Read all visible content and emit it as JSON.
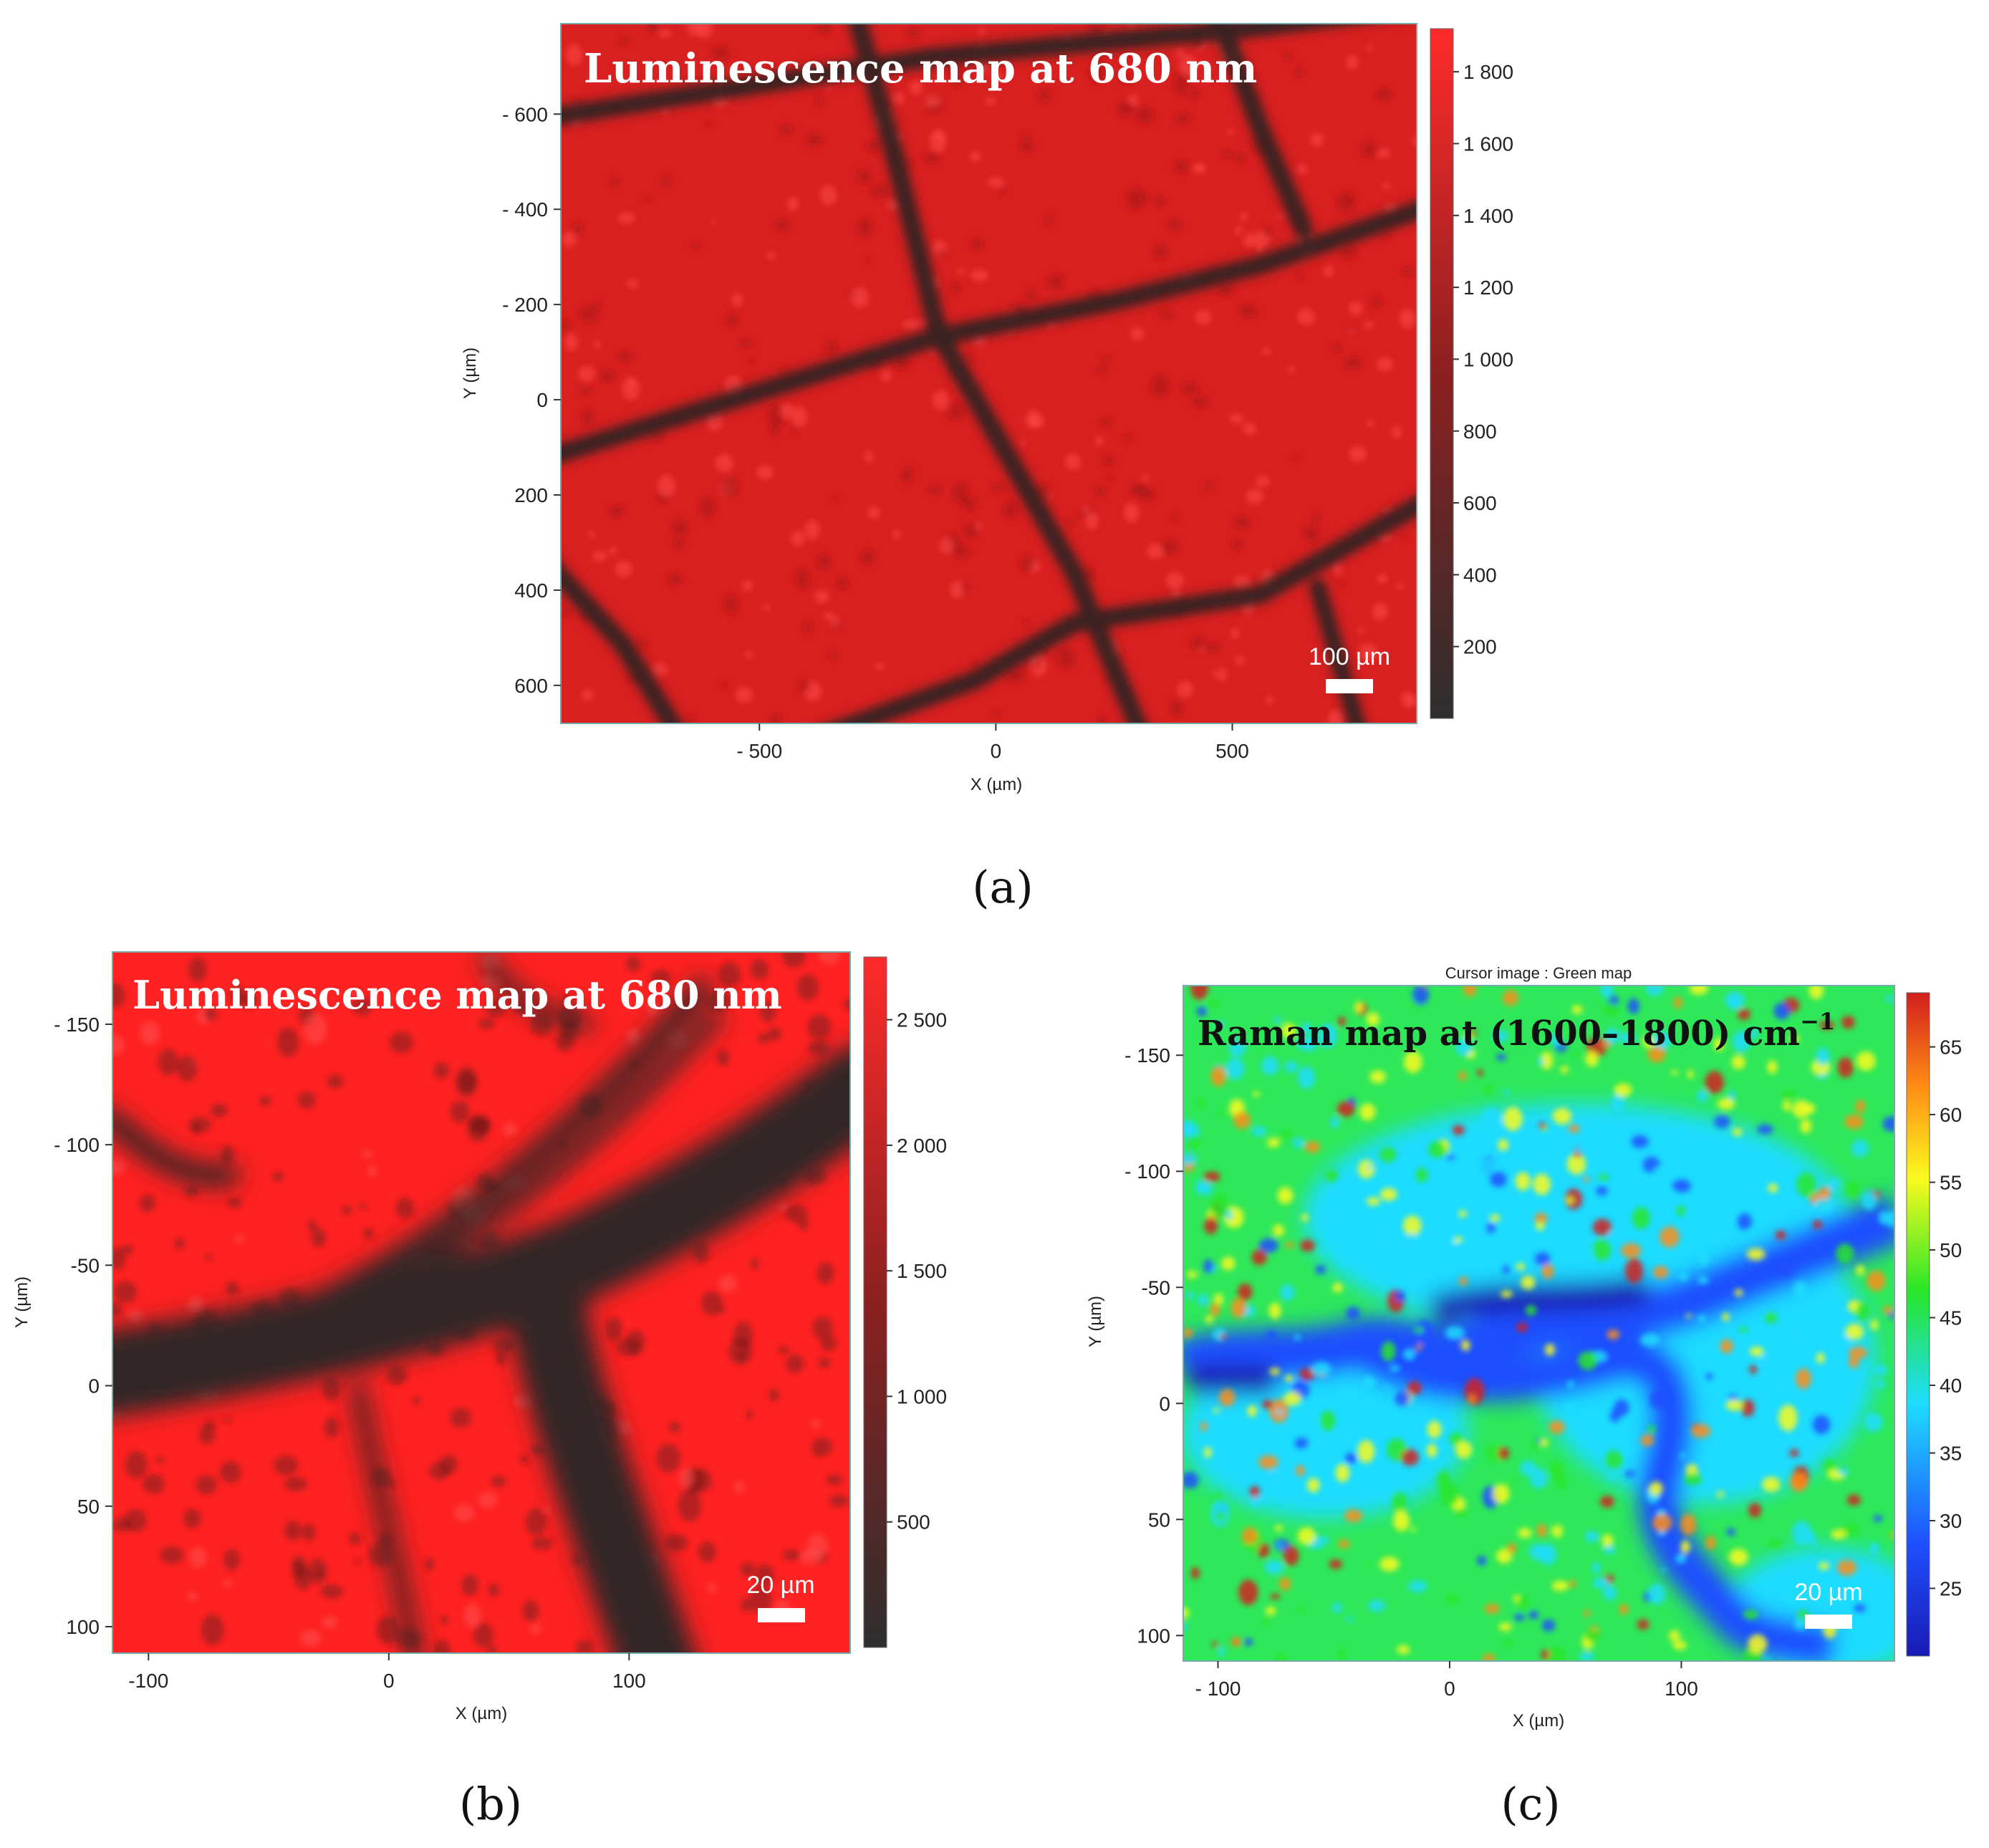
{
  "chart_data": [
    {
      "panel": "a",
      "type": "heatmap",
      "panel_label": "(a)",
      "title": "Luminescence map at 680 nm",
      "xlabel": "X (µm)",
      "ylabel": "Y (µm)",
      "xlim": [
        -920,
        890
      ],
      "ylim": [
        -790,
        680
      ],
      "xticks": [
        -500,
        0,
        500
      ],
      "xtick_labels": [
        "- 500",
        "0",
        "500"
      ],
      "yticks": [
        -600,
        -400,
        -200,
        0,
        200,
        400,
        600
      ],
      "ytick_labels": [
        "- 600",
        "- 400",
        "- 200",
        "0",
        "200",
        "400",
        "600"
      ],
      "colorbar": {
        "range": [
          0,
          1920
        ],
        "ticks": [
          200,
          400,
          600,
          800,
          1000,
          1200,
          1400,
          1600,
          1800
        ],
        "tick_labels": [
          "200",
          "400",
          "600",
          "800",
          "1 000",
          "1 200",
          "1 400",
          "1 600",
          "1 800"
        ],
        "colors": [
          "#2e2e2e",
          "#ff2a2a"
        ]
      },
      "scale_bar": "100 µm",
      "colors": {
        "cell": "#d92020",
        "wall": "#3a2222"
      }
    },
    {
      "panel": "b",
      "type": "heatmap",
      "panel_label": "(b)",
      "title": "Luminescence map at 680 nm",
      "xlabel": "X (µm)",
      "ylabel": "Y (µm)",
      "xlim": [
        -115,
        192
      ],
      "ylim": [
        -180,
        111
      ],
      "xticks": [
        -100,
        0,
        100
      ],
      "xtick_labels": [
        "-100",
        "0",
        "100"
      ],
      "yticks": [
        -150,
        -100,
        -50,
        0,
        50,
        100
      ],
      "ytick_labels": [
        "- 150",
        "- 100",
        "-50",
        "0",
        "50",
        "100"
      ],
      "colorbar": {
        "range": [
          0,
          2750
        ],
        "ticks": [
          500,
          1000,
          1500,
          2000,
          2500
        ],
        "tick_labels": [
          "500",
          "1 000",
          "1 500",
          "2 000",
          "2 500"
        ],
        "colors": [
          "#2e2e2e",
          "#ff2a2a"
        ]
      },
      "scale_bar": "20 µm",
      "colors": {
        "cell": "#ff2222",
        "wall": "#332828"
      }
    },
    {
      "panel": "c",
      "type": "heatmap",
      "panel_label": "(c)",
      "header": "Cursor image : Green map",
      "title": "Raman map at (1600–1800) cm",
      "title_superscript": "−1",
      "xlabel": "X (µm)",
      "ylabel": "Y (µm)",
      "xlim": [
        -115,
        192
      ],
      "ylim": [
        -180,
        111
      ],
      "xticks": [
        -100,
        0,
        100
      ],
      "xtick_labels": [
        "- 100",
        "0",
        "100"
      ],
      "yticks": [
        -150,
        -100,
        -50,
        0,
        50,
        100
      ],
      "ytick_labels": [
        "- 150",
        "- 100",
        "-50",
        "0",
        "50",
        "100"
      ],
      "colorbar": {
        "range": [
          20,
          69
        ],
        "ticks": [
          25,
          30,
          35,
          40,
          45,
          50,
          55,
          60,
          65
        ],
        "tick_labels": [
          "25",
          "30",
          "35",
          "40",
          "45",
          "50",
          "55",
          "60",
          "65"
        ],
        "colors": [
          "#1a1ab4",
          "#1e50ff",
          "#1edcff",
          "#28e628",
          "#fafa1e",
          "#ff8c14",
          "#d21e1e"
        ]
      },
      "scale_bar": "20 µm"
    }
  ]
}
